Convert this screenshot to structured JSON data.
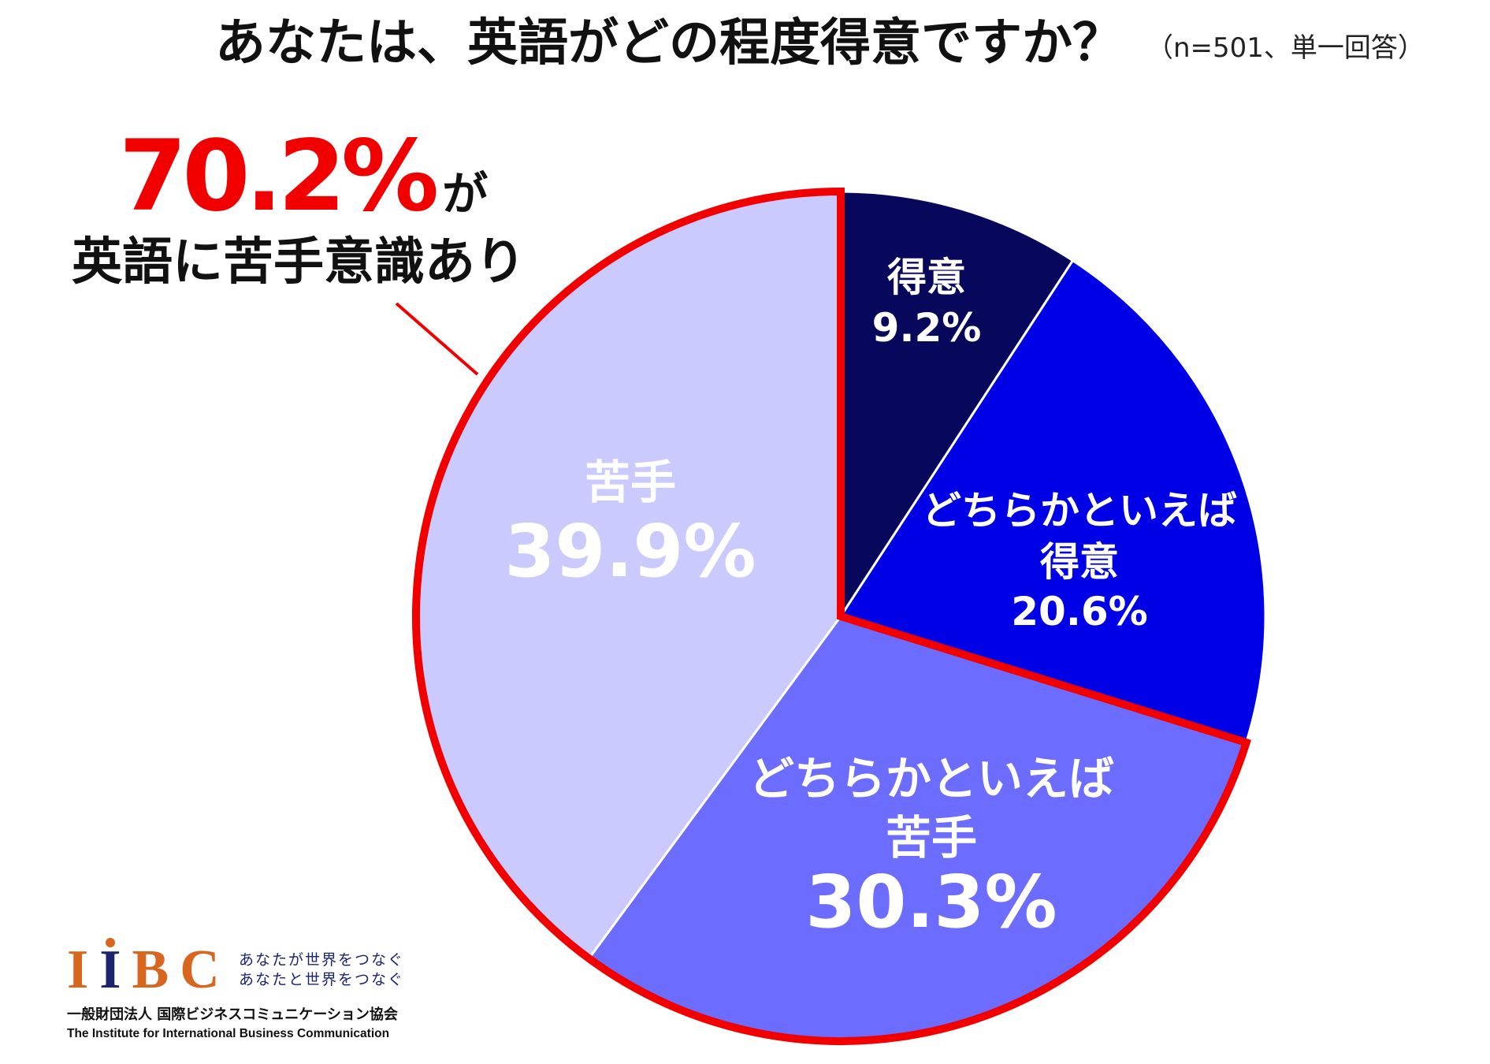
{
  "chart_data": {
    "type": "pie",
    "title": "あなたは、英語がどの程度得意ですか？",
    "subtitle": "（n=501、単一回答）",
    "slices": [
      {
        "label_lines": [
          "得意"
        ],
        "value": 9.2,
        "value_label": "9.2%",
        "color": "#07075b",
        "highlighted": false
      },
      {
        "label_lines": [
          "どちらかといえば",
          "得意"
        ],
        "value": 20.6,
        "value_label": "20.6%",
        "color": "#0000e6",
        "highlighted": false
      },
      {
        "label_lines": [
          "どちらかといえば",
          "苦手"
        ],
        "value": 30.3,
        "value_label": "30.3%",
        "color": "#6c6cff",
        "highlighted": true
      },
      {
        "label_lines": [
          "苦手"
        ],
        "value": 39.9,
        "value_label": "39.9%",
        "color": "#cacaff",
        "highlighted": true
      }
    ],
    "label_color": "#ffffff",
    "highlight_color": "#f20000"
  },
  "callout": {
    "value": "70.2%",
    "suffix": "が",
    "text": "英語に苦手意識あり"
  },
  "logo": {
    "text": "IIBC",
    "tagline_lines": [
      "あなたが世界をつなぐ",
      "あなたと世界をつなぐ"
    ],
    "org_name_ja": "一般財団法人 国際ビジネスコミュニケーション協会",
    "org_name_en": "The Institute for International Business Communication",
    "colors": {
      "orange": "#d9661f",
      "navy": "#1c2470"
    }
  }
}
